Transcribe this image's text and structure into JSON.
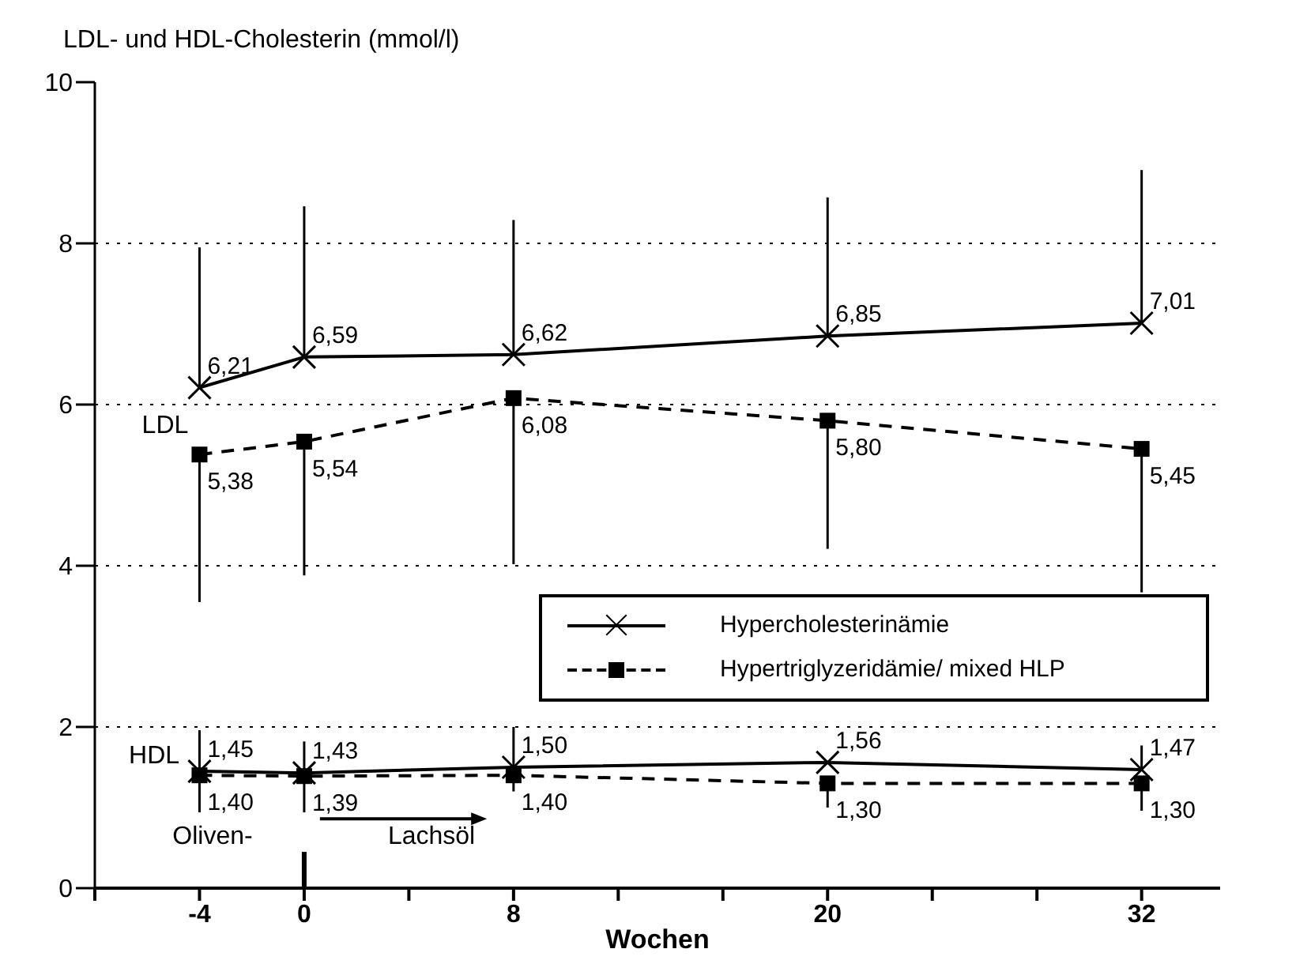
{
  "chart_data": {
    "type": "line",
    "ylabel": "LDL- und HDL-Cholesterin (mmol/l)",
    "xlabel": "Wochen",
    "x": [
      -4,
      0,
      8,
      20,
      32
    ],
    "series": [
      {
        "name": "Hypercholesterinämie",
        "color": "#000000",
        "marker": "cross",
        "line_style": "solid",
        "values": [
          6.21,
          6.59,
          6.62,
          6.85,
          7.01
        ],
        "value_labels": [
          "6,21",
          "6,59",
          "6,62",
          "6,85",
          "7,01"
        ],
        "errors": [
          [
            6.21,
            7.95
          ],
          [
            6.59,
            8.46
          ],
          [
            6.62,
            8.29
          ],
          [
            6.85,
            8.57
          ],
          [
            7.01,
            8.91
          ]
        ]
      },
      {
        "name": "Hypertriglyzeridämie/ mixed HLP",
        "color": "#000000",
        "marker": "square",
        "line_style": "dashed",
        "values": [
          5.38,
          5.54,
          6.08,
          5.8,
          5.45
        ],
        "value_labels": [
          "5,38",
          "5,54",
          "6,08",
          "5,80",
          "5,45"
        ],
        "errors": [
          [
            3.55,
            5.38
          ],
          [
            3.88,
            5.54
          ],
          [
            4.02,
            6.08
          ],
          [
            4.21,
            5.8
          ],
          [
            3.67,
            5.45
          ]
        ]
      },
      {
        "color": "#000000",
        "marker": "cross",
        "line_style": "solid",
        "values": [
          1.45,
          1.43,
          1.5,
          1.56,
          1.47
        ],
        "value_labels": [
          "1,45",
          "1,43",
          "1,50",
          "1,56",
          "1,47"
        ],
        "errors": [
          [
            1.45,
            1.96
          ],
          [
            1.43,
            1.82
          ],
          [
            1.5,
            2.0
          ],
          null,
          [
            1.47,
            1.77
          ]
        ]
      },
      {
        "color": "#000000",
        "marker": "square",
        "line_style": "dashed",
        "values": [
          1.4,
          1.39,
          1.4,
          1.3,
          1.3
        ],
        "value_labels": [
          "1,40",
          "1,39",
          "1,40",
          "1,30",
          "1,30"
        ],
        "errors": [
          [
            0.94,
            1.4
          ],
          [
            0.94,
            1.39
          ],
          [
            1.2,
            1.4
          ],
          [
            1.0,
            1.3
          ],
          [
            0.96,
            1.3
          ]
        ]
      }
    ],
    "annotations": [
      "LDL",
      "HDL",
      "Oliven-",
      "Lachsöl"
    ],
    "xlim": [
      -8,
      35
    ],
    "xticks": [
      {
        "value": -8,
        "label": null
      },
      -4,
      0,
      {
        "value": 4,
        "label": null
      },
      8,
      {
        "value": 12,
        "label": null
      },
      {
        "value": 16,
        "label": null
      },
      20,
      {
        "value": 24,
        "label": null
      },
      {
        "value": 28,
        "label": null
      },
      32
    ],
    "ylim": [
      0,
      10
    ],
    "yticks": [
      0,
      2,
      4,
      6,
      8,
      10
    ],
    "grid": "y",
    "legend": "bottom right"
  }
}
